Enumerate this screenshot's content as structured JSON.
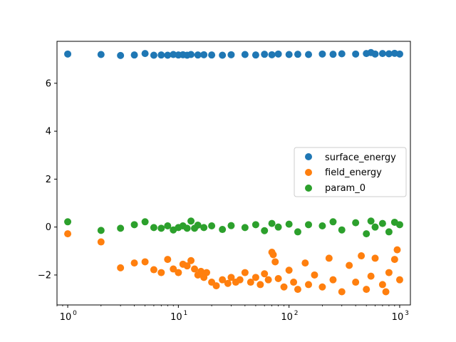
{
  "chart_data": {
    "type": "scatter",
    "title": "",
    "xlabel": "",
    "ylabel": "",
    "xscale": "log",
    "xlim": [
      0.8,
      1250
    ],
    "ylim": [
      -3.25,
      7.75
    ],
    "xticks": [
      {
        "value": 1,
        "label": "10",
        "exp": "0"
      },
      {
        "value": 10,
        "label": "10",
        "exp": "1"
      },
      {
        "value": 100,
        "label": "10",
        "exp": "2"
      },
      {
        "value": 1000,
        "label": "10",
        "exp": "3"
      }
    ],
    "yticks": [
      {
        "value": -2,
        "label": "−2"
      },
      {
        "value": 0,
        "label": "0"
      },
      {
        "value": 2,
        "label": "2"
      },
      {
        "value": 4,
        "label": "4"
      },
      {
        "value": 6,
        "label": "6"
      }
    ],
    "grid": false,
    "legend_position": "center-right",
    "series": [
      {
        "name": "surface_energy",
        "color": "#1f77b4",
        "x": [
          1,
          2,
          3,
          4,
          5,
          6,
          7,
          8,
          9,
          10,
          11,
          12,
          13,
          15,
          17,
          20,
          25,
          30,
          40,
          50,
          60,
          70,
          80,
          100,
          120,
          150,
          200,
          250,
          300,
          400,
          500,
          550,
          600,
          700,
          800,
          900,
          1000
        ],
        "y": [
          7.22,
          7.2,
          7.16,
          7.18,
          7.24,
          7.17,
          7.18,
          7.17,
          7.2,
          7.18,
          7.19,
          7.17,
          7.2,
          7.18,
          7.19,
          7.18,
          7.17,
          7.19,
          7.2,
          7.18,
          7.21,
          7.19,
          7.22,
          7.2,
          7.21,
          7.2,
          7.22,
          7.21,
          7.23,
          7.22,
          7.24,
          7.28,
          7.22,
          7.24,
          7.23,
          7.25,
          7.22
        ]
      },
      {
        "name": "field_energy",
        "color": "#ff7f0e",
        "x": [
          1,
          2,
          3,
          4,
          5,
          6,
          7,
          8,
          9,
          10,
          11,
          12,
          13,
          14,
          15,
          16,
          17,
          18,
          20,
          22,
          25,
          28,
          30,
          33,
          36,
          40,
          45,
          50,
          55,
          60,
          65,
          70,
          72,
          75,
          80,
          90,
          100,
          110,
          120,
          140,
          150,
          170,
          200,
          230,
          250,
          300,
          350,
          400,
          450,
          500,
          550,
          600,
          700,
          750,
          800,
          900,
          950,
          1000
        ],
        "y": [
          -0.28,
          -0.62,
          -1.7,
          -1.5,
          -1.45,
          -1.78,
          -1.9,
          -1.35,
          -1.75,
          -1.9,
          -1.55,
          -1.62,
          -1.4,
          -1.75,
          -2.0,
          -1.85,
          -2.1,
          -1.9,
          -2.3,
          -2.45,
          -2.2,
          -2.35,
          -2.1,
          -2.3,
          -2.2,
          -1.9,
          -2.3,
          -2.1,
          -2.4,
          -1.95,
          -2.2,
          -1.05,
          -1.15,
          -1.45,
          -2.15,
          -2.5,
          -1.8,
          -2.3,
          -2.6,
          -1.5,
          -2.4,
          -2.0,
          -2.5,
          -1.3,
          -2.2,
          -2.7,
          -1.6,
          -2.3,
          -1.2,
          -2.6,
          -2.05,
          -1.3,
          -2.4,
          -2.7,
          -1.9,
          -1.35,
          -0.95,
          -2.2
        ]
      },
      {
        "name": "param_0",
        "color": "#2ca02c",
        "x": [
          1,
          2,
          3,
          4,
          5,
          6,
          7,
          8,
          9,
          10,
          11,
          12,
          13,
          14,
          15,
          17,
          20,
          25,
          30,
          40,
          50,
          60,
          70,
          80,
          100,
          120,
          150,
          200,
          250,
          300,
          400,
          500,
          550,
          600,
          700,
          800,
          900,
          1000
        ],
        "y": [
          0.22,
          -0.14,
          -0.05,
          0.1,
          0.22,
          -0.02,
          -0.05,
          0.05,
          -0.12,
          -0.02,
          0.05,
          -0.05,
          0.25,
          -0.05,
          0.08,
          -0.02,
          0.05,
          -0.1,
          0.06,
          -0.02,
          0.1,
          -0.15,
          0.15,
          0.0,
          0.12,
          -0.2,
          0.1,
          0.05,
          0.22,
          -0.12,
          0.18,
          -0.28,
          0.25,
          0.0,
          0.15,
          -0.2,
          0.2,
          0.1
        ]
      }
    ]
  }
}
